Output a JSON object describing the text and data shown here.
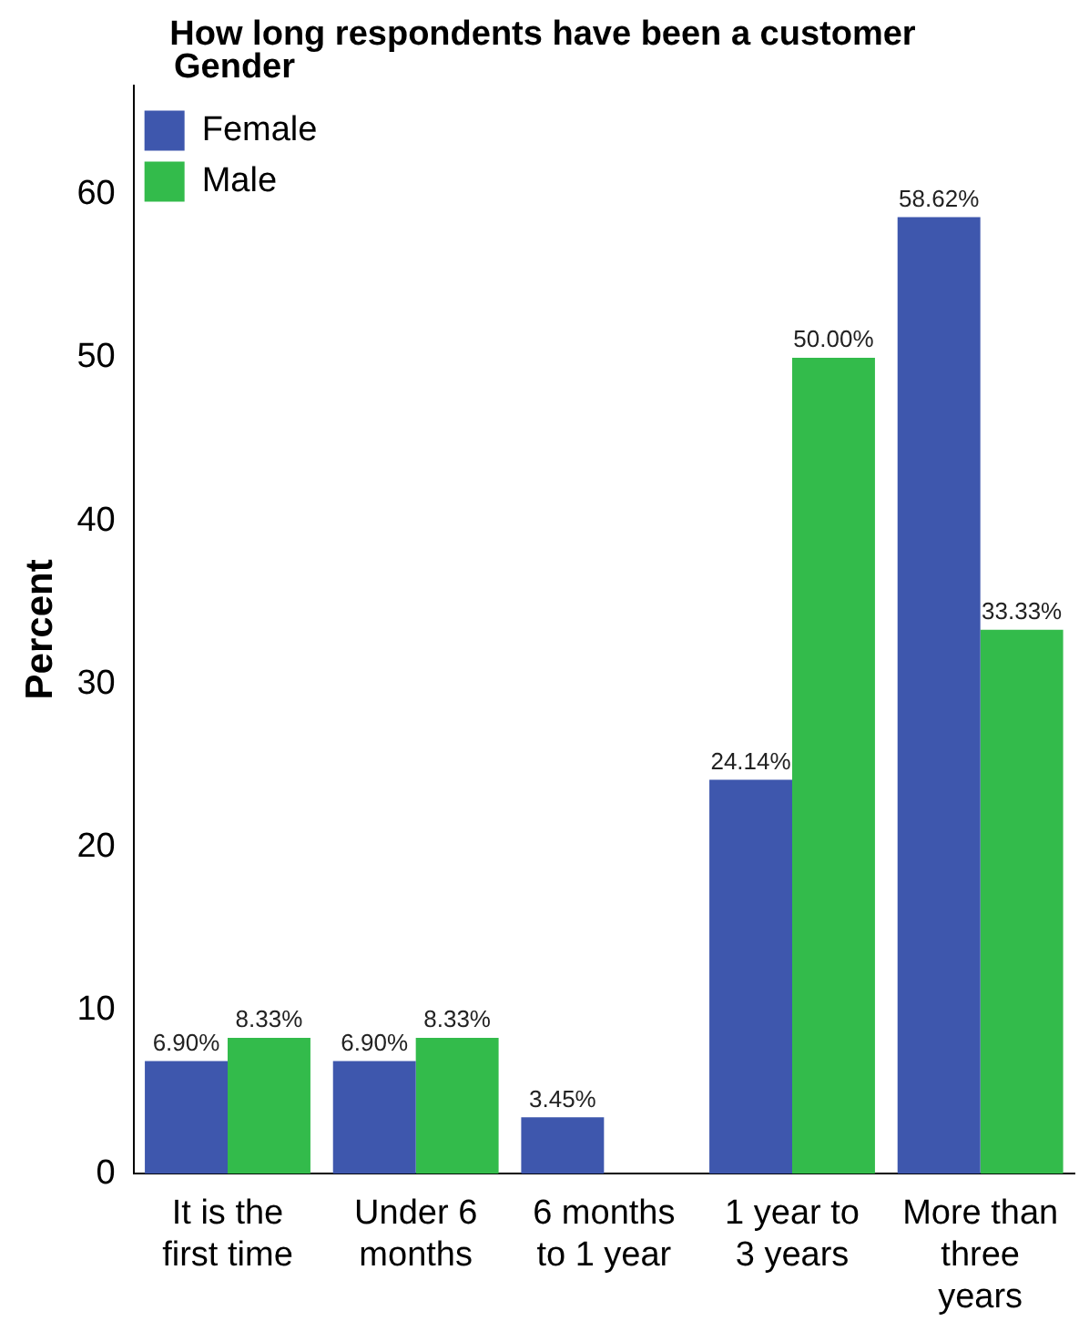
{
  "chart_data": {
    "type": "bar",
    "title": "How long respondents have been a customer",
    "ylabel": "Percent",
    "legend_title": "Gender",
    "categories": [
      "It is the first time",
      "Under 6 months",
      "6 months to 1 year",
      "1 year to 3 years",
      "More than three years"
    ],
    "series": [
      {
        "name": "Female",
        "color": "#3e57ad",
        "values": [
          6.9,
          6.9,
          3.45,
          24.14,
          58.62
        ],
        "value_labels": [
          "6.90%",
          "6.90%",
          "3.45%",
          "24.14%",
          "58.62%"
        ]
      },
      {
        "name": "Male",
        "color": "#33bb4b",
        "values": [
          8.33,
          8.33,
          null,
          50.0,
          33.33
        ],
        "value_labels": [
          "8.33%",
          "8.33%",
          null,
          "50.00%",
          "33.33%"
        ]
      }
    ],
    "ylim": [
      0,
      66.7
    ],
    "yticks": [
      0,
      10,
      20,
      30,
      40,
      50,
      60
    ],
    "grid": false,
    "legend": "top left"
  }
}
